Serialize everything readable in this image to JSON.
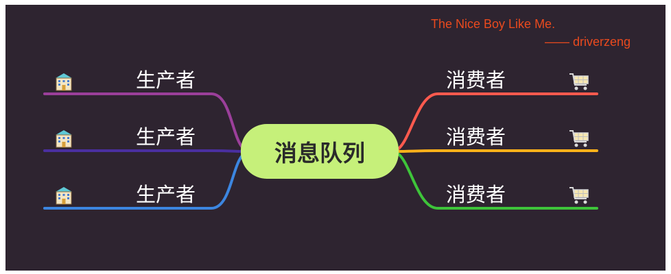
{
  "center": {
    "label": "消息队列"
  },
  "producers": [
    {
      "label": "生产者",
      "icon": "building-icon",
      "color": "#9b3f9a"
    },
    {
      "label": "生产者",
      "icon": "building-icon",
      "color": "#4a2fa0"
    },
    {
      "label": "生产者",
      "icon": "building-icon",
      "color": "#3c86e0"
    }
  ],
  "consumers": [
    {
      "label": "消费者",
      "icon": "shopping-cart-icon",
      "color": "#ff5a4e"
    },
    {
      "label": "消费者",
      "icon": "shopping-cart-icon",
      "color": "#ffb21a"
    },
    {
      "label": "消费者",
      "icon": "shopping-cart-icon",
      "color": "#3ec43a"
    }
  ],
  "quote": {
    "line1": "The Nice Boy Like Me.",
    "line2": "—— driverzeng"
  },
  "colors": {
    "background": "#2e2430",
    "center_fill": "#c6f07a",
    "quote": "#ea4a1e"
  }
}
